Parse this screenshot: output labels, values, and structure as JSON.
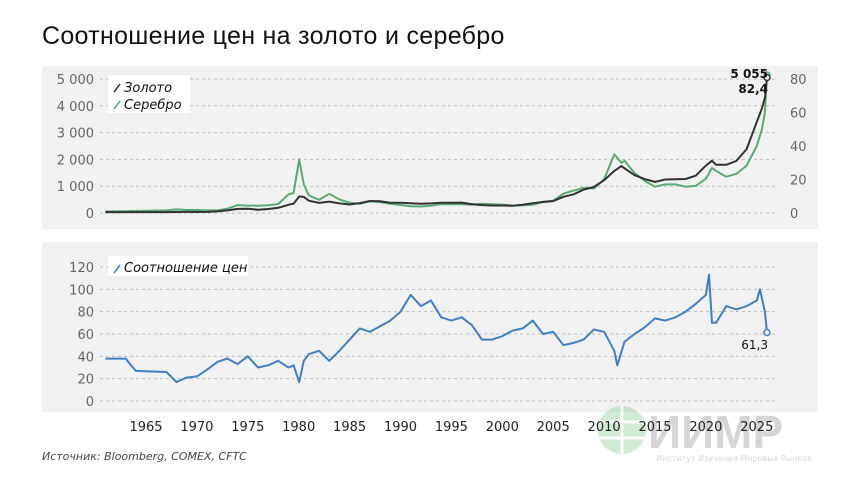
{
  "title": "Соотношение цен на золото и серебро",
  "source": "Источник: Bloomberg, COMEX, CFTC",
  "logo": {
    "name": "ИИМР",
    "subtitle": "Институт Изучения Мировых Рынков"
  },
  "chart_data": [
    {
      "type": "line",
      "grid": true,
      "legend": "top-left",
      "x": [
        1961,
        1963,
        1965,
        1967,
        1968,
        1969,
        1970,
        1971,
        1972,
        1973,
        1974,
        1975,
        1976,
        1977,
        1978,
        1979,
        1979.5,
        1980.05,
        1980.5,
        1981,
        1982,
        1983,
        1984,
        1985,
        1986,
        1987,
        1988,
        1989,
        1990,
        1991,
        1992,
        1993,
        1994,
        1995,
        1996,
        1997,
        1998,
        1999,
        2000,
        2001,
        2002,
        2003,
        2004,
        2005,
        2006,
        2007,
        2008,
        2009,
        2010,
        2011,
        2011.7,
        2012,
        2013,
        2014,
        2015,
        2016,
        2017,
        2018,
        2019,
        2020,
        2020.6,
        2021,
        2022,
        2023,
        2024,
        2025,
        2025.5,
        2025.8,
        2026
      ],
      "series": [
        {
          "name": "Золото",
          "axis": "left",
          "color": "#333333",
          "values": [
            35,
            35,
            35,
            35,
            39,
            41,
            36,
            41,
            58,
            97,
            154,
            160,
            125,
            148,
            193,
            307,
            350,
            615,
            600,
            460,
            375,
            424,
            360,
            317,
            368,
            447,
            437,
            381,
            383,
            362,
            344,
            360,
            384,
            384,
            388,
            331,
            294,
            279,
            279,
            271,
            310,
            364,
            409,
            445,
            604,
            697,
            872,
            972,
            1225,
            1572,
            1750,
            1669,
            1411,
            1266,
            1160,
            1251,
            1257,
            1268,
            1393,
            1770,
            1950,
            1799,
            1800,
            1943,
            2386,
            3400,
            3900,
            4300,
            5055
          ]
        },
        {
          "name": "Серебро",
          "axis": "right",
          "color": "#5aaa75",
          "values": [
            0.92,
            1.1,
            1.29,
            1.55,
            2.14,
            1.79,
            1.77,
            1.55,
            1.68,
            2.56,
            4.71,
            4.42,
            4.35,
            4.62,
            5.4,
            11.1,
            12,
            32,
            17,
            10.5,
            7.9,
            11.4,
            8.1,
            6.1,
            5.5,
            7.0,
            6.5,
            5.5,
            4.8,
            4.0,
            3.9,
            4.3,
            5.3,
            5.2,
            5.2,
            4.9,
            5.5,
            5.2,
            5.0,
            4.4,
            4.6,
            4.9,
            6.7,
            7.3,
            11.5,
            13.4,
            15.0,
            14.7,
            20.2,
            35.1,
            30,
            31.2,
            23.8,
            19.1,
            15.7,
            17.1,
            17.1,
            15.7,
            16.2,
            20.5,
            27,
            25.1,
            21.7,
            23.4,
            28.3,
            40,
            50,
            60,
            82.4
          ]
        }
      ],
      "ylim_left": [
        0,
        5000
      ],
      "yticks_left": [
        "0",
        "1 000",
        "2 000",
        "3 000",
        "4 000",
        "5 000"
      ],
      "ylim_right": [
        0,
        80
      ],
      "yticks_right": [
        "0",
        "20",
        "40",
        "60",
        "80"
      ],
      "annotations": [
        "5 055",
        "82,4"
      ]
    },
    {
      "type": "line",
      "grid": true,
      "legend": "top-left",
      "x": [
        1961,
        1963,
        1964,
        1967,
        1968,
        1969,
        1970,
        1971,
        1972,
        1973,
        1974,
        1975,
        1976,
        1977,
        1978,
        1979,
        1979.5,
        1980.05,
        1980.5,
        1981,
        1982,
        1983,
        1984,
        1985,
        1986,
        1987,
        1988,
        1989,
        1990,
        1991,
        1992,
        1993,
        1994,
        1995,
        1996,
        1997,
        1998,
        1999,
        2000,
        2001,
        2002,
        2003,
        2004,
        2005,
        2006,
        2007,
        2008,
        2009,
        2010,
        2011,
        2011.3,
        2012,
        2013,
        2014,
        2015,
        2016,
        2017,
        2018,
        2019,
        2020,
        2020.3,
        2020.6,
        2021,
        2022,
        2023,
        2024,
        2025,
        2025.3,
        2025.8,
        2026
      ],
      "series": [
        {
          "name": "Соотношение цен",
          "color": "#3f7fc4",
          "values": [
            38,
            38,
            27,
            26,
            17,
            21,
            22,
            28,
            35,
            38,
            33,
            40,
            30,
            32,
            36,
            30,
            32,
            17,
            36,
            42,
            45,
            36,
            45,
            55,
            65,
            62,
            67,
            72,
            80,
            95,
            85,
            90,
            75,
            72,
            75,
            68,
            55,
            55,
            58,
            63,
            65,
            72,
            60,
            62,
            50,
            52,
            55,
            64,
            62,
            45,
            32,
            53,
            60,
            66,
            74,
            72,
            75,
            80,
            87,
            95,
            113,
            70,
            70,
            85,
            82,
            85,
            90,
            100,
            80,
            61.3
          ]
        }
      ],
      "ylim": [
        0,
        120
      ],
      "yticks": [
        "0",
        "20",
        "40",
        "60",
        "80",
        "100",
        "120"
      ],
      "xticks": [
        "1965",
        "1970",
        "1975",
        "1980",
        "1985",
        "1990",
        "1995",
        "2000",
        "2005",
        "2010",
        "2015",
        "2020",
        "2025"
      ],
      "annotations": [
        "61,3"
      ]
    }
  ]
}
